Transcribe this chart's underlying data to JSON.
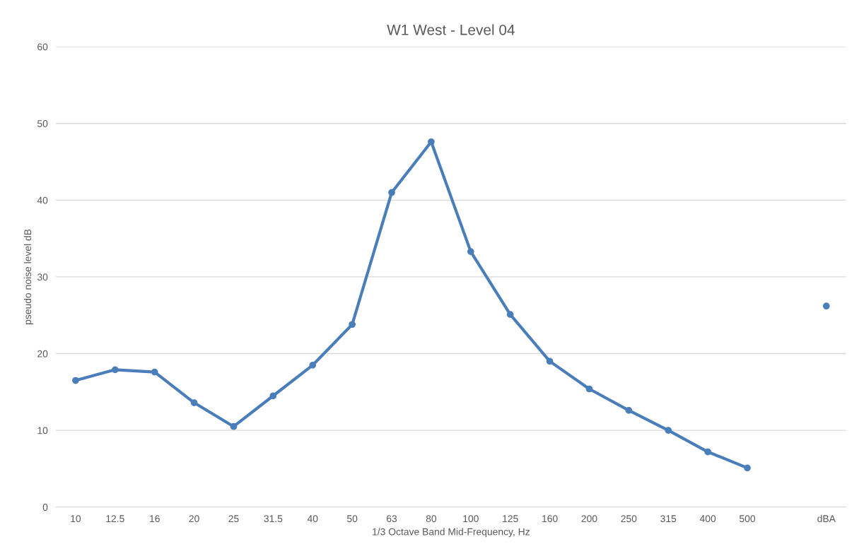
{
  "chart_data": {
    "type": "line",
    "title": "W1 West - Level 04",
    "xlabel": "1/3 Octave Band Mid-Frequency, Hz",
    "ylabel": "pseudo noise level dB",
    "categories": [
      "10",
      "12.5",
      "16",
      "20",
      "25",
      "31.5",
      "40",
      "50",
      "63",
      "80",
      "100",
      "125",
      "160",
      "200",
      "250",
      "315",
      "400",
      "500",
      null,
      "dBA"
    ],
    "series": [
      {
        "color": "#4a7ebb",
        "values": [
          16.5,
          17.9,
          17.6,
          13.6,
          10.5,
          14.5,
          18.5,
          23.8,
          41.0,
          47.6,
          33.3,
          25.1,
          19.0,
          15.4,
          12.6,
          10.0,
          7.2,
          5.1,
          null,
          null
        ]
      },
      {
        "type": "scatter",
        "color": "#4a7ebb",
        "values": [
          null,
          null,
          null,
          null,
          null,
          null,
          null,
          null,
          null,
          null,
          null,
          null,
          null,
          null,
          null,
          null,
          null,
          null,
          null,
          26.2
        ]
      }
    ],
    "ylim": [
      0,
      60
    ],
    "yticks": [
      0,
      10,
      20,
      30,
      40,
      50,
      60
    ],
    "grid": "y",
    "marker": "circle",
    "line_style": "solid"
  }
}
